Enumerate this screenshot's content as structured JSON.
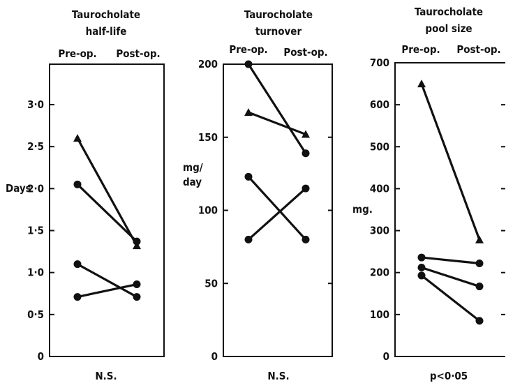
{
  "chart_data": [
    {
      "type": "line",
      "title_lines": [
        "Taurocholate",
        "half-life"
      ],
      "categories": [
        "Pre-op.",
        "Post-op."
      ],
      "ylabel": "Days",
      "ylim": [
        0,
        3.0
      ],
      "yticks": [
        0,
        0.5,
        1.0,
        1.5,
        2.0,
        2.5,
        3.0
      ],
      "ytick_labels": [
        "0",
        "0·5",
        "1·0",
        "1·5",
        "2·0",
        "2·5",
        "3·0"
      ],
      "footnote": "N.S.",
      "series": [
        {
          "marker": "triangle",
          "values": [
            2.6,
            1.32
          ]
        },
        {
          "marker": "circle",
          "values": [
            2.05,
            1.37
          ]
        },
        {
          "marker": "circle",
          "values": [
            1.1,
            0.71
          ]
        },
        {
          "marker": "circle",
          "values": [
            0.71,
            0.86
          ]
        }
      ]
    },
    {
      "type": "line",
      "title_lines": [
        "Taurocholate",
        "turnover"
      ],
      "categories": [
        "Pre-op.",
        "Post-op."
      ],
      "ylabel_lines": [
        "mg/",
        "day"
      ],
      "ylim": [
        0,
        200
      ],
      "yticks": [
        0,
        50,
        100,
        150,
        200
      ],
      "ytick_labels": [
        "0",
        "50",
        "100",
        "150",
        "200"
      ],
      "footnote": "N.S.",
      "series": [
        {
          "marker": "circle",
          "values": [
            200,
            139
          ]
        },
        {
          "marker": "triangle",
          "values": [
            167,
            152
          ]
        },
        {
          "marker": "circle",
          "values": [
            123,
            80
          ]
        },
        {
          "marker": "circle",
          "values": [
            80,
            115
          ]
        }
      ]
    },
    {
      "type": "line",
      "title_lines": [
        "Taurocholate",
        "pool size"
      ],
      "categories": [
        "Pre-op.",
        "Post-op."
      ],
      "ylabel": "mg.",
      "ylim": [
        0,
        700
      ],
      "yticks": [
        0,
        100,
        200,
        300,
        400,
        500,
        600,
        700
      ],
      "ytick_labels": [
        "0",
        "100",
        "200",
        "300",
        "400",
        "500",
        "600",
        "700"
      ],
      "footnote": "p<0·05",
      "series": [
        {
          "marker": "triangle",
          "values": [
            650,
            278
          ]
        },
        {
          "marker": "circle",
          "values": [
            236,
            222
          ]
        },
        {
          "marker": "circle",
          "values": [
            212,
            167
          ]
        },
        {
          "marker": "circle",
          "values": [
            193,
            85
          ]
        }
      ]
    }
  ]
}
